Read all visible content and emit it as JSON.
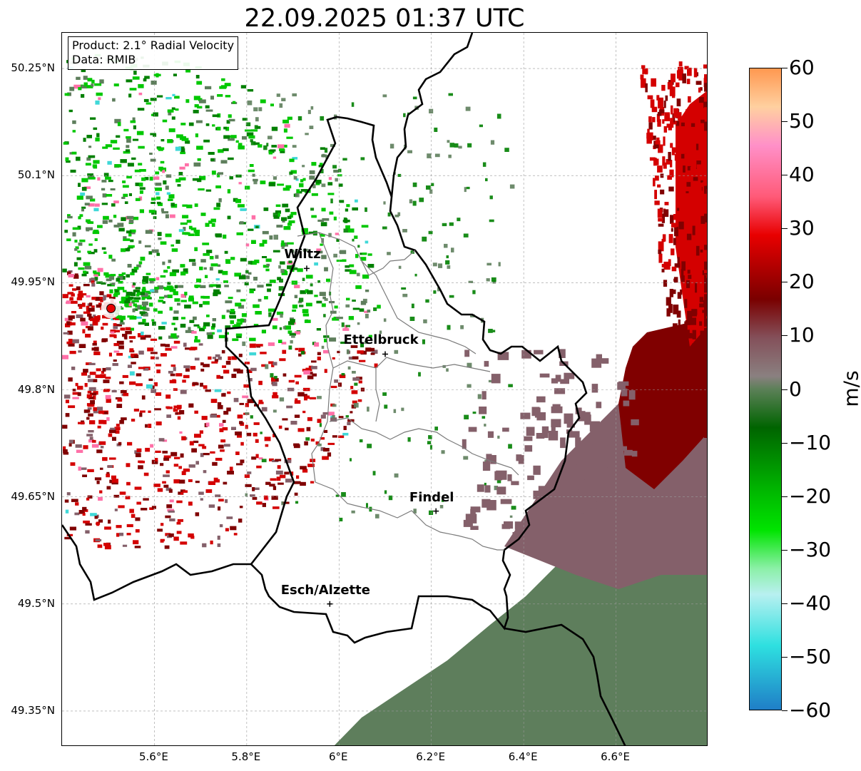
{
  "title": "22.09.2025 01:37 UTC",
  "info": {
    "product": "Product: 2.1° Radial Velocity",
    "data_source": "Data: RMIB"
  },
  "latitude_labels": [
    "50.25°N",
    "50.1°N",
    "49.95°N",
    "49.8°N",
    "49.65°N",
    "49.5°N",
    "49.35°N"
  ],
  "longitude_labels": [
    "5.6°E",
    "5.8°E",
    "6°E",
    "6.2°E",
    "6.4°E",
    "6.6°E"
  ],
  "map_extent": {
    "lon_min": 5.4,
    "lon_max": 6.8,
    "lat_min": 49.3,
    "lat_max": 50.3
  },
  "radar_site": {
    "lon": 5.506,
    "lat": 49.914,
    "color": "#e60000"
  },
  "cities": [
    {
      "name": "Wiltz",
      "lon": 5.93,
      "lat": 49.97
    },
    {
      "name": "Ettelbruck",
      "lon": 6.1,
      "lat": 49.85
    },
    {
      "name": "Findel",
      "lon": 6.21,
      "lat": 49.63
    },
    {
      "name": "Esch/Alzette",
      "lon": 5.98,
      "lat": 49.5
    }
  ],
  "colorbar": {
    "unit": "m/s",
    "min": -60,
    "max": 60,
    "tick_labels": [
      "60",
      "50",
      "40",
      "30",
      "20",
      "10",
      "0",
      "−10",
      "−20",
      "−30",
      "−40",
      "−50",
      "−60"
    ],
    "colors": {
      "deep_blue": "#1f7ec7",
      "cyan": "#2ee0e0",
      "light_cyan": "#b8f0f0",
      "light_green": "#8cf0a8",
      "green": "#00e400",
      "mid_green": "#00b800",
      "dark_green": "#006400",
      "grey_green": "#5c8058",
      "grey": "#8a8080",
      "mauve": "#84505a",
      "dark_red": "#7a0000",
      "red": "#e80000",
      "pink": "#ff5a78",
      "light_pink": "#ff90c8",
      "peach": "#ffd0a0",
      "orange": "#ff9850"
    }
  },
  "velocity_colors": {
    "inbound_strong": "#00c800",
    "inbound_dark": "#008000",
    "outbound_strong": "#d40000",
    "outbound_dark": "#800000",
    "near_zero_positive": "#84606a",
    "near_zero_negative": "#5e7e5c"
  }
}
